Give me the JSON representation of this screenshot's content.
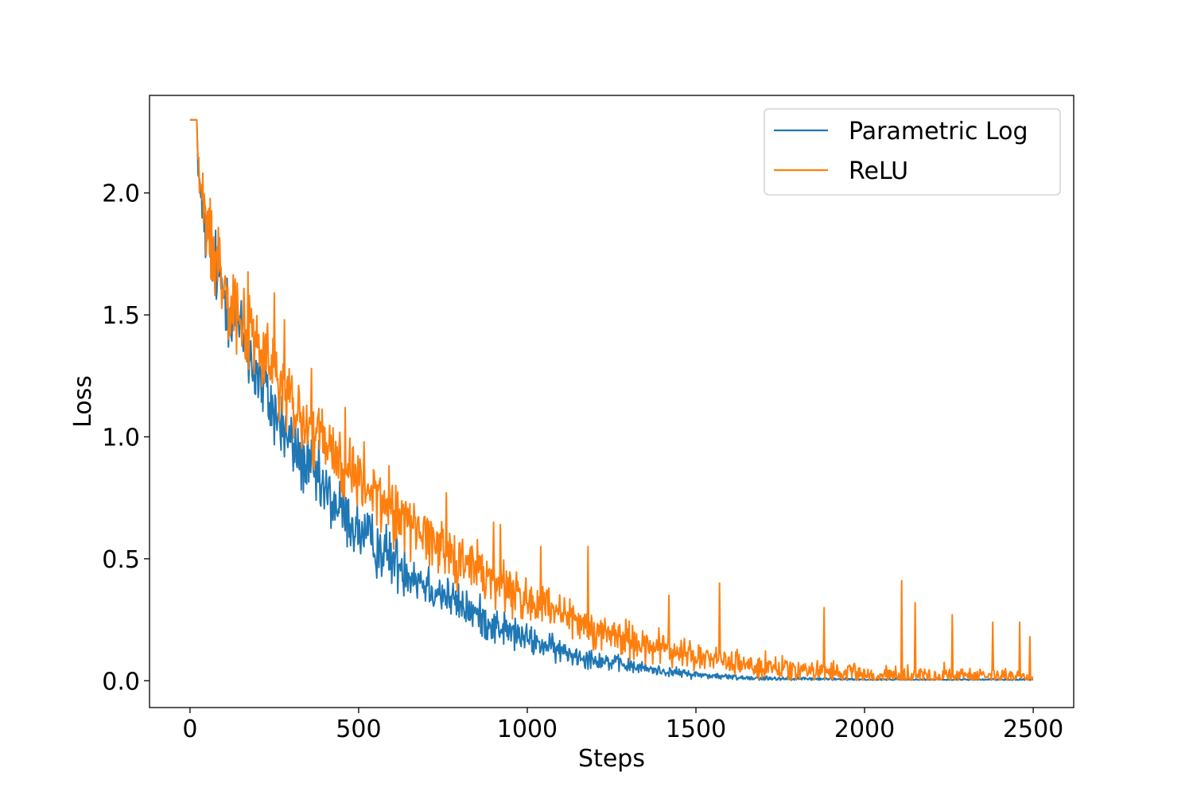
{
  "chart_data": {
    "type": "line",
    "title": "",
    "xlabel": "Steps",
    "ylabel": "Loss",
    "xlim": [
      -120,
      2620
    ],
    "ylim": [
      -0.11,
      2.4
    ],
    "xticks": [
      0,
      500,
      1000,
      1500,
      2000,
      2500
    ],
    "yticks": [
      0.0,
      0.5,
      1.0,
      1.5,
      2.0
    ],
    "xtick_labels": [
      "0",
      "500",
      "1000",
      "1500",
      "2000",
      "2500"
    ],
    "ytick_labels": [
      "0.0",
      "0.5",
      "1.0",
      "1.5",
      "2.0"
    ],
    "grid": false,
    "legend_position": "top-right",
    "x_range": [
      0,
      2500
    ],
    "series": [
      {
        "name": "Parametric Log",
        "color": "#1f77b4",
        "x": [
          0,
          20,
          25,
          50,
          100,
          150,
          200,
          250,
          300,
          400,
          500,
          600,
          700,
          800,
          900,
          1000,
          1100,
          1200,
          1300,
          1400,
          1500,
          1600,
          1700,
          1800,
          2000,
          2200,
          2500
        ],
        "y": [
          2.3,
          2.3,
          2.05,
          1.8,
          1.6,
          1.42,
          1.25,
          1.1,
          0.97,
          0.77,
          0.61,
          0.5,
          0.4,
          0.31,
          0.23,
          0.17,
          0.12,
          0.09,
          0.06,
          0.04,
          0.025,
          0.015,
          0.01,
          0.008,
          0.005,
          0.004,
          0.003
        ],
        "noise": [
          0,
          0,
          0.04,
          0.07,
          0.08,
          0.08,
          0.08,
          0.08,
          0.07,
          0.07,
          0.06,
          0.06,
          0.05,
          0.04,
          0.04,
          0.03,
          0.025,
          0.02,
          0.015,
          0.01,
          0.008,
          0.006,
          0.005,
          0.004,
          0.003,
          0.003,
          0.003
        ]
      },
      {
        "name": "ReLU",
        "color": "#ff7f0e",
        "x": [
          0,
          20,
          25,
          50,
          100,
          150,
          200,
          250,
          300,
          400,
          500,
          600,
          700,
          800,
          900,
          1000,
          1100,
          1200,
          1300,
          1400,
          1500,
          1600,
          1700,
          1800,
          2000,
          2200,
          2500
        ],
        "y": [
          2.3,
          2.3,
          2.07,
          1.85,
          1.65,
          1.5,
          1.38,
          1.25,
          1.12,
          0.96,
          0.82,
          0.7,
          0.6,
          0.5,
          0.41,
          0.33,
          0.26,
          0.21,
          0.17,
          0.13,
          0.1,
          0.075,
          0.055,
          0.04,
          0.025,
          0.02,
          0.015
        ],
        "noise": [
          0,
          0,
          0.05,
          0.08,
          0.09,
          0.09,
          0.09,
          0.09,
          0.08,
          0.08,
          0.07,
          0.07,
          0.06,
          0.06,
          0.06,
          0.05,
          0.05,
          0.04,
          0.04,
          0.035,
          0.03,
          0.03,
          0.025,
          0.02,
          0.02,
          0.02,
          0.015
        ],
        "spikes": [
          {
            "x": 250,
            "y": 1.59
          },
          {
            "x": 280,
            "y": 1.48
          },
          {
            "x": 360,
            "y": 1.28
          },
          {
            "x": 460,
            "y": 1.12
          },
          {
            "x": 610,
            "y": 0.8
          },
          {
            "x": 760,
            "y": 0.77
          },
          {
            "x": 900,
            "y": 0.65
          },
          {
            "x": 920,
            "y": 0.64
          },
          {
            "x": 1040,
            "y": 0.55
          },
          {
            "x": 1180,
            "y": 0.55
          },
          {
            "x": 1420,
            "y": 0.35
          },
          {
            "x": 1570,
            "y": 0.4
          },
          {
            "x": 1880,
            "y": 0.3
          },
          {
            "x": 2110,
            "y": 0.41
          },
          {
            "x": 2150,
            "y": 0.32
          },
          {
            "x": 2260,
            "y": 0.27
          },
          {
            "x": 2380,
            "y": 0.24
          },
          {
            "x": 2460,
            "y": 0.24
          },
          {
            "x": 2490,
            "y": 0.18
          }
        ]
      }
    ]
  }
}
